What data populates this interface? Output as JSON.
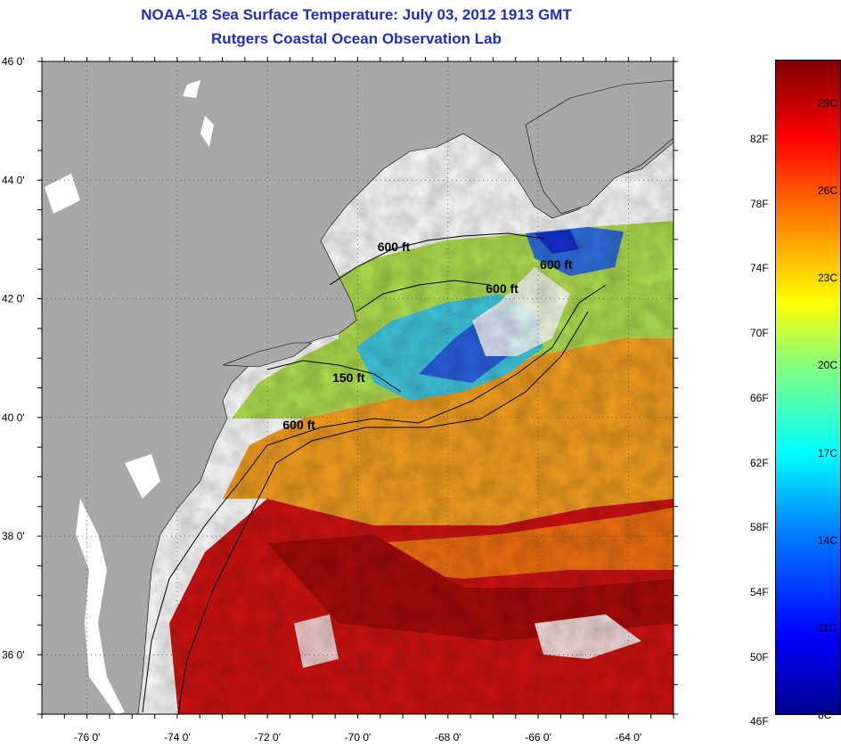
{
  "title": {
    "line1": "NOAA-18 Sea Surface Temperature:  July 03, 2012 1913 GMT",
    "line2": "Rutgers Coastal Ocean Observation Lab"
  },
  "map": {
    "lat_labels": [
      "46 0'",
      "44 0'",
      "42 0'",
      "40 0'",
      "38 0'",
      "36 0'"
    ],
    "lat_values": [
      46,
      44,
      42,
      40,
      38,
      36
    ],
    "lon_labels": [
      "-76 0'",
      "-74 0'",
      "-72 0'",
      "-70 0'",
      "-68 0'",
      "-66 0'",
      "-64 0'"
    ],
    "lon_values": [
      -76,
      -74,
      -72,
      -70,
      -68,
      -66,
      -64
    ],
    "lat_range": [
      35,
      46
    ],
    "lon_range": [
      -77,
      -63
    ],
    "contour_labels": [
      {
        "text": "600 ft",
        "lon": -69.2,
        "lat": 42.8
      },
      {
        "text": "600 ft",
        "lon": -65.6,
        "lat": 42.5
      },
      {
        "text": "600 ft",
        "lon": -66.8,
        "lat": 42.1
      },
      {
        "text": "150 ft",
        "lon": -70.2,
        "lat": 40.6
      },
      {
        "text": "600 ft",
        "lon": -71.3,
        "lat": 39.8
      }
    ],
    "colors": {
      "land": "#a8a8a8",
      "cloud": "#ffffff",
      "warm": "#d01010",
      "orange": "#f5a020",
      "green": "#a0e060",
      "cyan": "#40d0e0",
      "blue": "#2050e0"
    }
  },
  "colorbar": {
    "fahrenheit": [
      "82F",
      "78F",
      "74F",
      "70F",
      "66F",
      "62F",
      "58F",
      "54F",
      "50F",
      "46F"
    ],
    "fahrenheit_values": [
      82,
      78,
      74,
      70,
      66,
      62,
      58,
      54,
      50,
      46
    ],
    "celsius": [
      "29C",
      "26C",
      "23C",
      "20C",
      "17C",
      "14C",
      "11C",
      "8C"
    ],
    "celsius_values": [
      29,
      26,
      23,
      20,
      17,
      14,
      11,
      8
    ],
    "range_c": [
      8,
      30.5
    ]
  }
}
